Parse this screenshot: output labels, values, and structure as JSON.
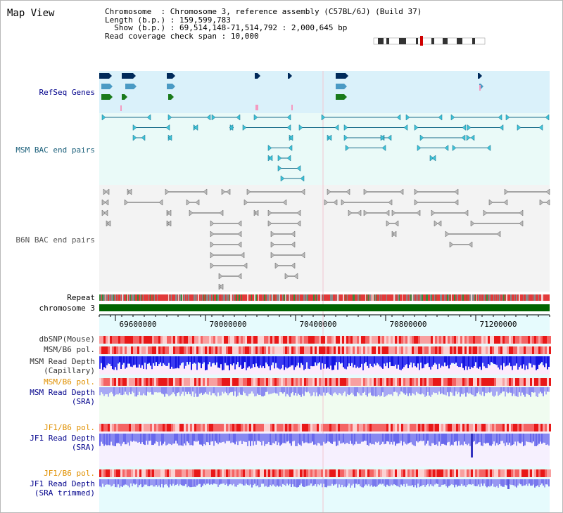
{
  "page_title": "Map View",
  "info": {
    "chromosome_label": "Chromosome",
    "chromosome_value": "Chromosome 3, reference assembly (C57BL/6J) (Build 37)",
    "length_label": "Length (b.p.)",
    "length_value": "159,599,783",
    "show_label": "Show (b.p.)",
    "show_value": "69,514,148-71,514,792 : 2,000,645 bp",
    "span_label": "Read coverage check span",
    "span_value": "10,000"
  },
  "tracks": {
    "refseq": "RefSeq Genes",
    "msm_bac": "MSM BAC end pairs",
    "b6n_bac": "B6N BAC end pairs",
    "repeat": "Repeat",
    "chromosome": "chromosome 3",
    "dbsnp": "dbSNP(Mouse)",
    "msm_b6_pol_1": "MSM/B6 pol.",
    "msm_read_depth_cap_1": "MSM Read Depth",
    "msm_read_depth_cap_2": "(Capillary)",
    "msm_b6_pol_2": "MSM/B6 pol.",
    "msm_read_depth_sra_1": "MSM Read Depth",
    "msm_read_depth_sra_2": "(SRA)",
    "jf1_b6_pol_1": "JF1/B6 pol.",
    "jf1_read_depth_sra_1": "JF1 Read Depth",
    "jf1_read_depth_sra_2": "(SRA)",
    "jf1_b6_pol_2": "JF1/B6 pol.",
    "jf1_read_depth_trim_1": "JF1 Read Depth",
    "jf1_read_depth_trim_2": "(SRA trimmed)"
  },
  "ruler": {
    "ticks": [
      "69600000",
      "70000000",
      "70400000",
      "70800000",
      "71200000"
    ]
  },
  "colors": {
    "label_navy": "#00008b",
    "label_teal": "#1a5f7a",
    "label_gray": "#555555",
    "label_orange": "#e09000",
    "chromosome_green": "#006400"
  }
}
